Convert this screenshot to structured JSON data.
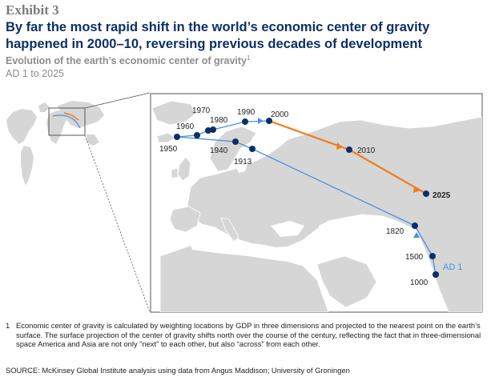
{
  "header": {
    "exhibit": "Exhibit 3",
    "title": "By far the most rapid shift in the world’s economic center of gravity happened in 2000–10, reversing previous decades of development",
    "subtitle": "Evolution of the earth’s economic center of gravity",
    "subtitle_note": "1",
    "date_range": "AD 1 to 2025"
  },
  "colors": {
    "historical_path": "#4a90e2",
    "recent_path": "#f07c1e",
    "point": "#0d2f66",
    "land": "#d6d6d6",
    "sea": "#ffffff"
  },
  "map": {
    "points": [
      {
        "label": "AD 1",
        "highlight": true
      },
      {
        "label": "1000"
      },
      {
        "label": "1500"
      },
      {
        "label": "1820"
      },
      {
        "label": "1913"
      },
      {
        "label": "1940"
      },
      {
        "label": "1950"
      },
      {
        "label": "1960"
      },
      {
        "label": "1970"
      },
      {
        "label": "1980"
      },
      {
        "label": "1990"
      },
      {
        "label": "2000"
      },
      {
        "label": "2010"
      },
      {
        "label": "2025",
        "bold": true
      }
    ]
  },
  "footnote": {
    "number": "1",
    "text": "Economic center of gravity is calculated by weighting locations by GDP in three dimensions and projected to the nearest point on the earth’s surface. The surface projection of the center of gravity shifts north over the course of the century, reflecting the fact that in three-dimensional space America and Asia are not only “next” to each other, but also “across” from each other."
  },
  "source": "SOURCE: McKinsey Global Institute analysis using data from Angus Maddison; University of Groningen"
}
